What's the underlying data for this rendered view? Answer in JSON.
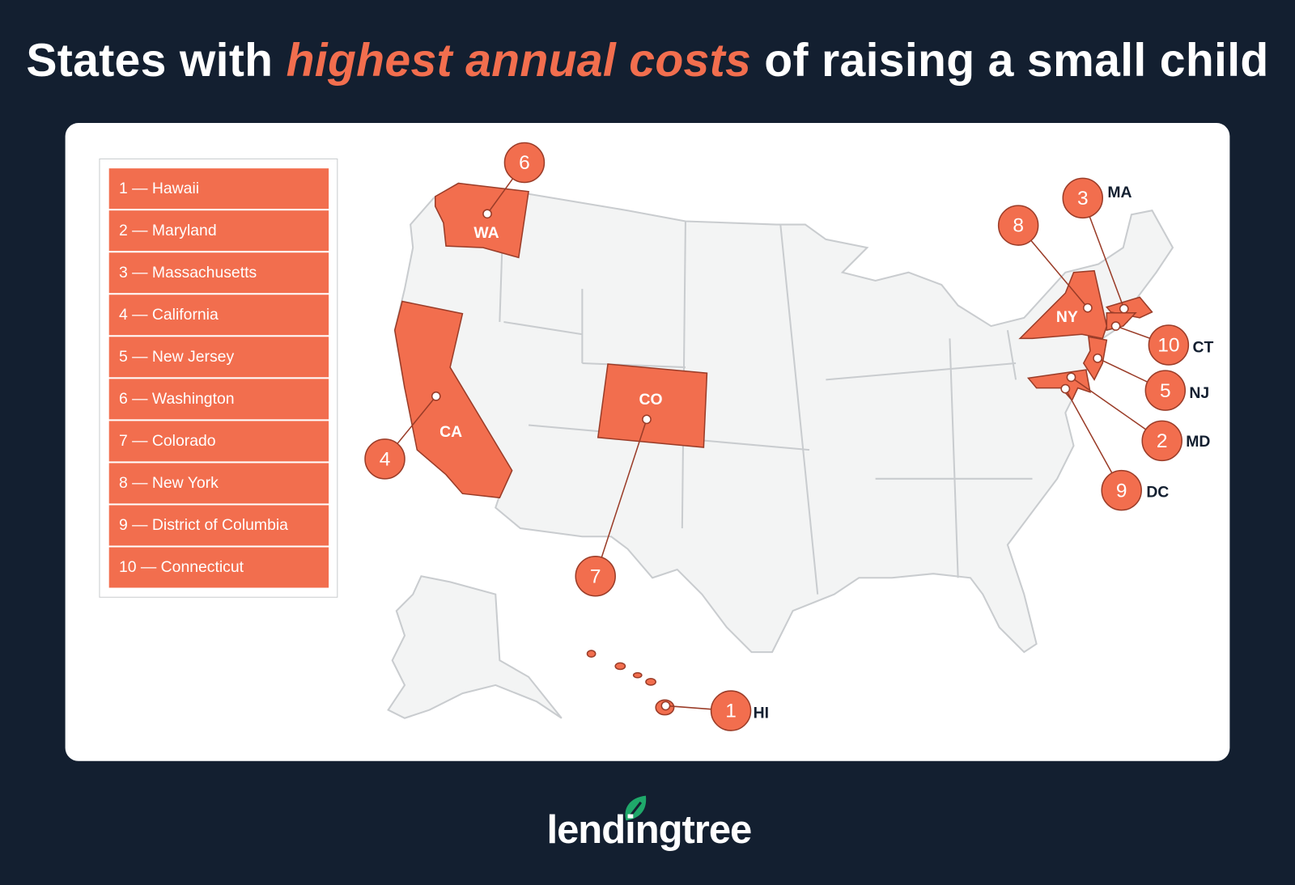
{
  "title": {
    "before": "States with ",
    "highlight": "highest annual costs",
    "after": " of raising a small child"
  },
  "colors": {
    "background": "#131f30",
    "highlight": "#f26e4e",
    "stroke": "#9a3c28",
    "land": "#f3f4f4",
    "border": "#c9cccf"
  },
  "legend": [
    {
      "rank": 1,
      "label": "1 — Hawaii"
    },
    {
      "rank": 2,
      "label": "2 — Maryland"
    },
    {
      "rank": 3,
      "label": "3 — Massachusetts"
    },
    {
      "rank": 4,
      "label": "4 — California"
    },
    {
      "rank": 5,
      "label": "5 — New Jersey"
    },
    {
      "rank": 6,
      "label": "6 — Washington"
    },
    {
      "rank": 7,
      "label": "7 — Colorado"
    },
    {
      "rank": 8,
      "label": "8 — New York"
    },
    {
      "rank": 9,
      "label": "9 — District of Columbia"
    },
    {
      "rank": 10,
      "label": "10 — Connecticut"
    }
  ],
  "markers": [
    {
      "rank": "1",
      "state": "HI"
    },
    {
      "rank": "2",
      "state": "MD"
    },
    {
      "rank": "3",
      "state": "MA"
    },
    {
      "rank": "4",
      "state": "CA"
    },
    {
      "rank": "5",
      "state": "NJ"
    },
    {
      "rank": "6",
      "state": "WA"
    },
    {
      "rank": "7",
      "state": "CO"
    },
    {
      "rank": "8",
      "state": "NY"
    },
    {
      "rank": "9",
      "state": "DC"
    },
    {
      "rank": "10",
      "state": "CT"
    }
  ],
  "logo": {
    "text": "lendingtree",
    "icon": "leaf-icon"
  }
}
